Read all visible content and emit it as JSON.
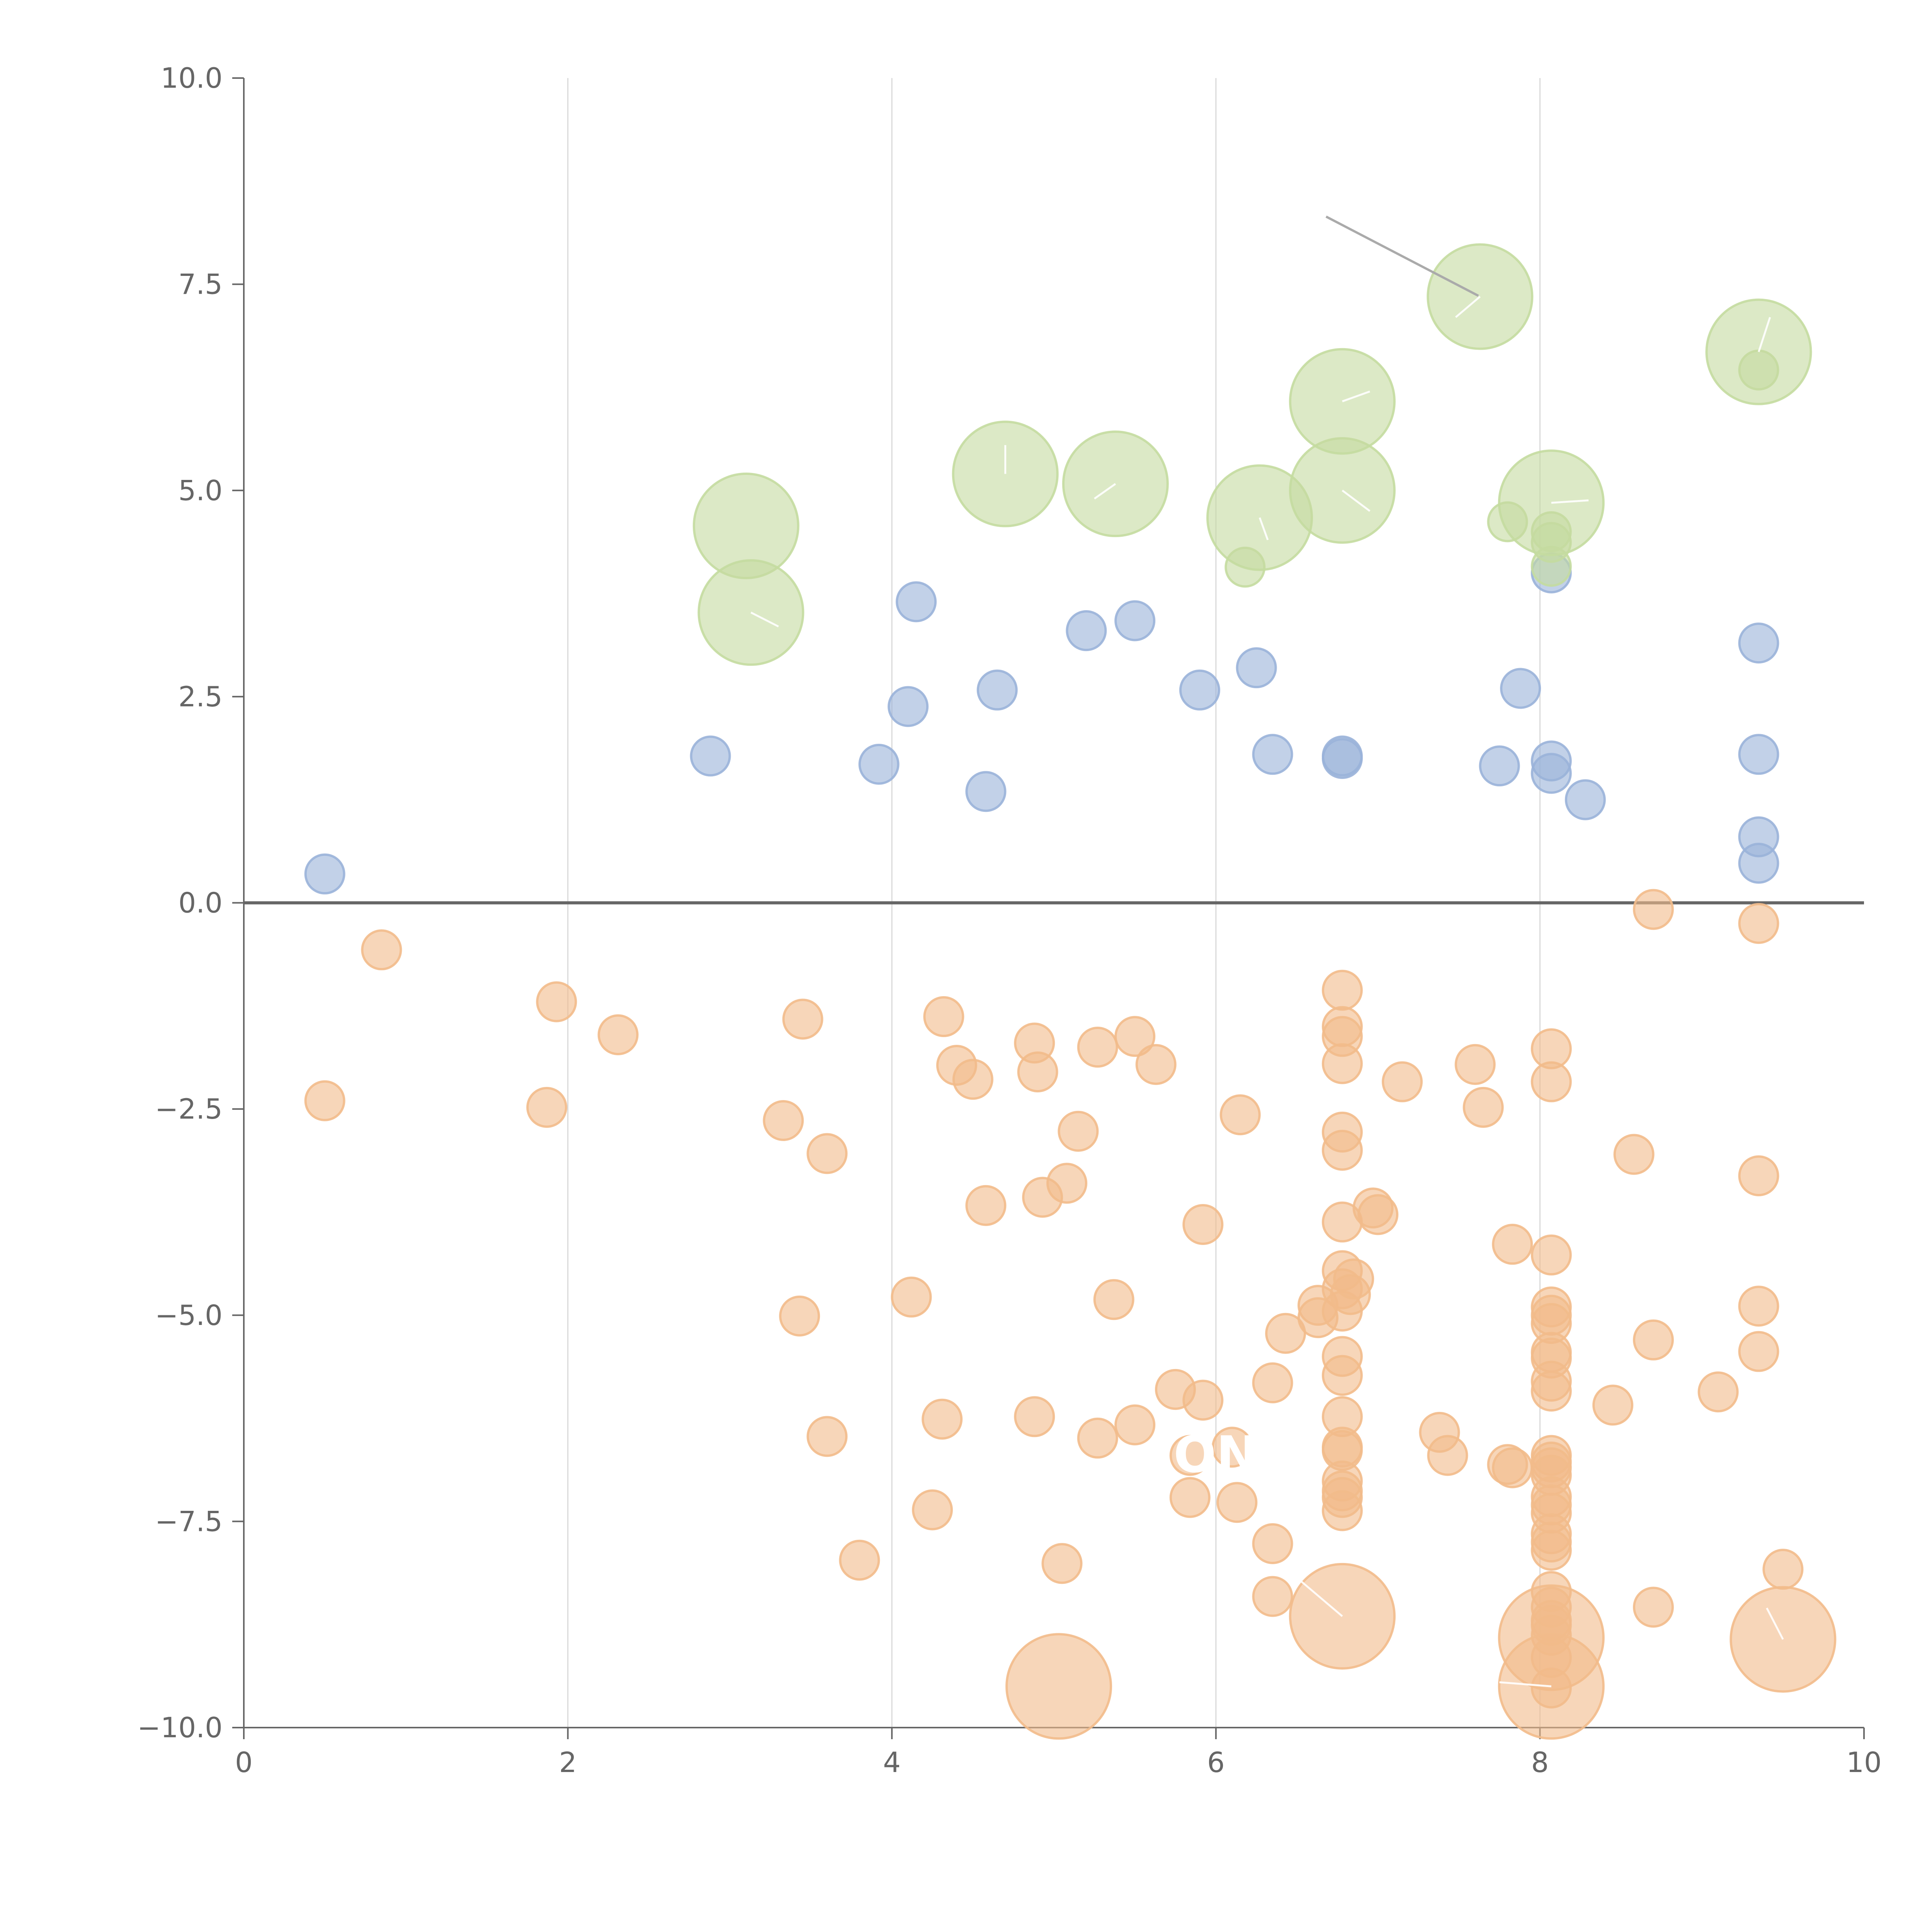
{
  "chart_data": {
    "type": "scatter",
    "title": "",
    "xlabel": "",
    "ylabel": "",
    "xlim": [
      0,
      10
    ],
    "ylim": [
      -10,
      10
    ],
    "x_ticks": [
      "0",
      "2",
      "4",
      "6",
      "8",
      "10"
    ],
    "y_ticks": [
      "10.0",
      "7.5",
      "5.0",
      "2.5",
      "0.0",
      "−2.5",
      "−5.0",
      "−7.5",
      "−10.0"
    ],
    "grid": "vertical",
    "zero_line": 0,
    "colors": {
      "series_a": "#9ab3d9",
      "series_b": "#f2bb8b",
      "series_c": "#c4dba0",
      "axis": "#666666",
      "grid": "#d9d9d9"
    },
    "series": [
      {
        "name": "blue",
        "color": "#9ab3d9",
        "size": 1,
        "points": [
          [
            0.5,
            0.35
          ],
          [
            2.88,
            1.78
          ],
          [
            3.92,
            1.68
          ],
          [
            4.1,
            2.38
          ],
          [
            4.15,
            3.65
          ],
          [
            4.58,
            1.35
          ],
          [
            4.65,
            2.58
          ],
          [
            5.2,
            3.3
          ],
          [
            5.5,
            3.42
          ],
          [
            5.9,
            2.58
          ],
          [
            6.25,
            2.85
          ],
          [
            6.35,
            1.8
          ],
          [
            6.78,
            1.78
          ],
          [
            6.78,
            1.75
          ],
          [
            7.75,
            1.66
          ],
          [
            7.88,
            2.6
          ],
          [
            8.07,
            1.72
          ],
          [
            8.07,
            1.57
          ],
          [
            8.28,
            1.25
          ],
          [
            8.07,
            4.0
          ],
          [
            9.35,
            3.15
          ],
          [
            9.35,
            1.8
          ],
          [
            9.35,
            0.8
          ],
          [
            9.35,
            0.48
          ]
        ]
      },
      {
        "name": "orange",
        "color": "#f2bb8b",
        "size": 1,
        "points": [
          [
            0.85,
            -0.57
          ],
          [
            0.5,
            -2.4
          ],
          [
            1.87,
            -2.48
          ],
          [
            1.93,
            -1.2
          ],
          [
            2.31,
            -1.6
          ],
          [
            3.33,
            -2.64
          ],
          [
            3.45,
            -1.41
          ],
          [
            3.6,
            -3.04
          ],
          [
            3.43,
            -5.01
          ],
          [
            3.6,
            -6.47
          ],
          [
            3.8,
            -7.97
          ],
          [
            4.12,
            -4.78
          ],
          [
            4.25,
            -7.36
          ],
          [
            4.32,
            -1.38
          ],
          [
            4.31,
            -6.26
          ],
          [
            4.4,
            -1.97
          ],
          [
            4.5,
            -2.14
          ],
          [
            4.58,
            -3.67
          ],
          [
            4.88,
            -1.7
          ],
          [
            4.9,
            -2.05
          ],
          [
            4.93,
            -3.57
          ],
          [
            4.88,
            -6.23
          ],
          [
            5.08,
            -3.4
          ],
          [
            5.05,
            -8.01
          ],
          [
            5.15,
            -2.77
          ],
          [
            5.27,
            -1.75
          ],
          [
            5.27,
            -6.49
          ],
          [
            5.37,
            -4.81
          ],
          [
            5.5,
            -1.62
          ],
          [
            5.5,
            -6.33
          ],
          [
            5.63,
            -1.96
          ],
          [
            5.75,
            -5.9
          ],
          [
            5.84,
            -6.7
          ],
          [
            5.84,
            -7.21
          ],
          [
            5.92,
            -3.9
          ],
          [
            5.92,
            -6.03
          ],
          [
            6.1,
            -6.6
          ],
          [
            6.13,
            -7.27
          ],
          [
            6.15,
            -2.57
          ],
          [
            6.35,
            -5.82
          ],
          [
            6.35,
            -7.77
          ],
          [
            6.35,
            -8.41
          ],
          [
            6.43,
            -5.22
          ],
          [
            6.63,
            -4.88
          ],
          [
            6.63,
            -5.03
          ],
          [
            6.78,
            -1.06
          ],
          [
            6.78,
            -1.5
          ],
          [
            6.78,
            -1.62
          ],
          [
            6.78,
            -1.95
          ],
          [
            6.78,
            -2.78
          ],
          [
            6.78,
            -3.0
          ],
          [
            6.78,
            -3.87
          ],
          [
            6.78,
            -4.46
          ],
          [
            6.78,
            -4.68
          ],
          [
            6.78,
            -4.95
          ],
          [
            6.78,
            -5.5
          ],
          [
            6.78,
            -5.73
          ],
          [
            6.78,
            -6.23
          ],
          [
            6.78,
            -6.6
          ],
          [
            6.78,
            -6.64
          ],
          [
            6.78,
            -7.01
          ],
          [
            6.78,
            -7.13
          ],
          [
            6.78,
            -7.21
          ],
          [
            6.78,
            -7.37
          ],
          [
            6.83,
            -4.75
          ],
          [
            6.85,
            -4.56
          ],
          [
            6.97,
            -3.7
          ],
          [
            7.0,
            -3.78
          ],
          [
            7.15,
            -2.17
          ],
          [
            7.38,
            -6.42
          ],
          [
            7.43,
            -6.7
          ],
          [
            7.6,
            -1.96
          ],
          [
            7.65,
            -2.48
          ],
          [
            7.8,
            -6.81
          ],
          [
            7.83,
            -4.14
          ],
          [
            7.83,
            -6.85
          ],
          [
            8.07,
            -1.77
          ],
          [
            8.07,
            -2.17
          ],
          [
            8.07,
            -4.27
          ],
          [
            8.07,
            -4.9
          ],
          [
            8.07,
            -5.0
          ],
          [
            8.07,
            -5.1
          ],
          [
            8.07,
            -5.45
          ],
          [
            8.07,
            -5.52
          ],
          [
            8.07,
            -5.8
          ],
          [
            8.07,
            -5.92
          ],
          [
            8.07,
            -6.7
          ],
          [
            8.07,
            -6.78
          ],
          [
            8.07,
            -6.85
          ],
          [
            8.07,
            -6.94
          ],
          [
            8.07,
            -7.2
          ],
          [
            8.07,
            -7.3
          ],
          [
            8.07,
            -7.4
          ],
          [
            8.07,
            -7.65
          ],
          [
            8.07,
            -7.75
          ],
          [
            8.07,
            -7.85
          ],
          [
            8.07,
            -8.35
          ],
          [
            8.07,
            -8.54
          ],
          [
            8.07,
            -8.7
          ],
          [
            8.07,
            -8.76
          ],
          [
            8.07,
            -8.88
          ],
          [
            8.07,
            -9.15
          ],
          [
            8.07,
            -9.52
          ],
          [
            8.45,
            -6.09
          ],
          [
            8.58,
            -3.05
          ],
          [
            8.7,
            -0.08
          ],
          [
            8.7,
            -5.3
          ],
          [
            8.7,
            -8.54
          ],
          [
            9.1,
            -5.93
          ],
          [
            9.35,
            -0.25
          ],
          [
            9.35,
            -3.31
          ],
          [
            9.35,
            -4.89
          ],
          [
            9.35,
            -5.44
          ],
          [
            9.5,
            -8.08
          ]
        ]
      },
      {
        "name": "orange-large",
        "color": "#f2bb8b",
        "size": 2,
        "points": [
          [
            5.03,
            -9.5
          ],
          [
            6.78,
            -8.65
          ],
          [
            8.07,
            -8.91
          ],
          [
            8.07,
            -9.5
          ],
          [
            9.5,
            -8.93
          ]
        ]
      },
      {
        "name": "green",
        "color": "#c4dba0",
        "size": 1,
        "points": [
          [
            6.18,
            4.07
          ],
          [
            7.8,
            4.62
          ],
          [
            8.07,
            4.5
          ],
          [
            8.07,
            4.37
          ],
          [
            8.07,
            4.08
          ],
          [
            9.35,
            6.46
          ]
        ]
      },
      {
        "name": "green-large",
        "color": "#c4dba0",
        "size": 2,
        "points": [
          [
            3.1,
            4.57
          ],
          [
            3.13,
            3.52
          ],
          [
            4.7,
            5.2
          ],
          [
            5.38,
            5.08
          ],
          [
            6.27,
            4.67
          ],
          [
            6.78,
            5.0
          ],
          [
            6.78,
            6.08
          ],
          [
            7.63,
            7.35
          ],
          [
            8.07,
            4.85
          ],
          [
            9.35,
            6.68
          ]
        ]
      }
    ],
    "annotations": [
      {
        "text": "ON",
        "x": 6.0,
        "y": -6.9
      }
    ]
  }
}
